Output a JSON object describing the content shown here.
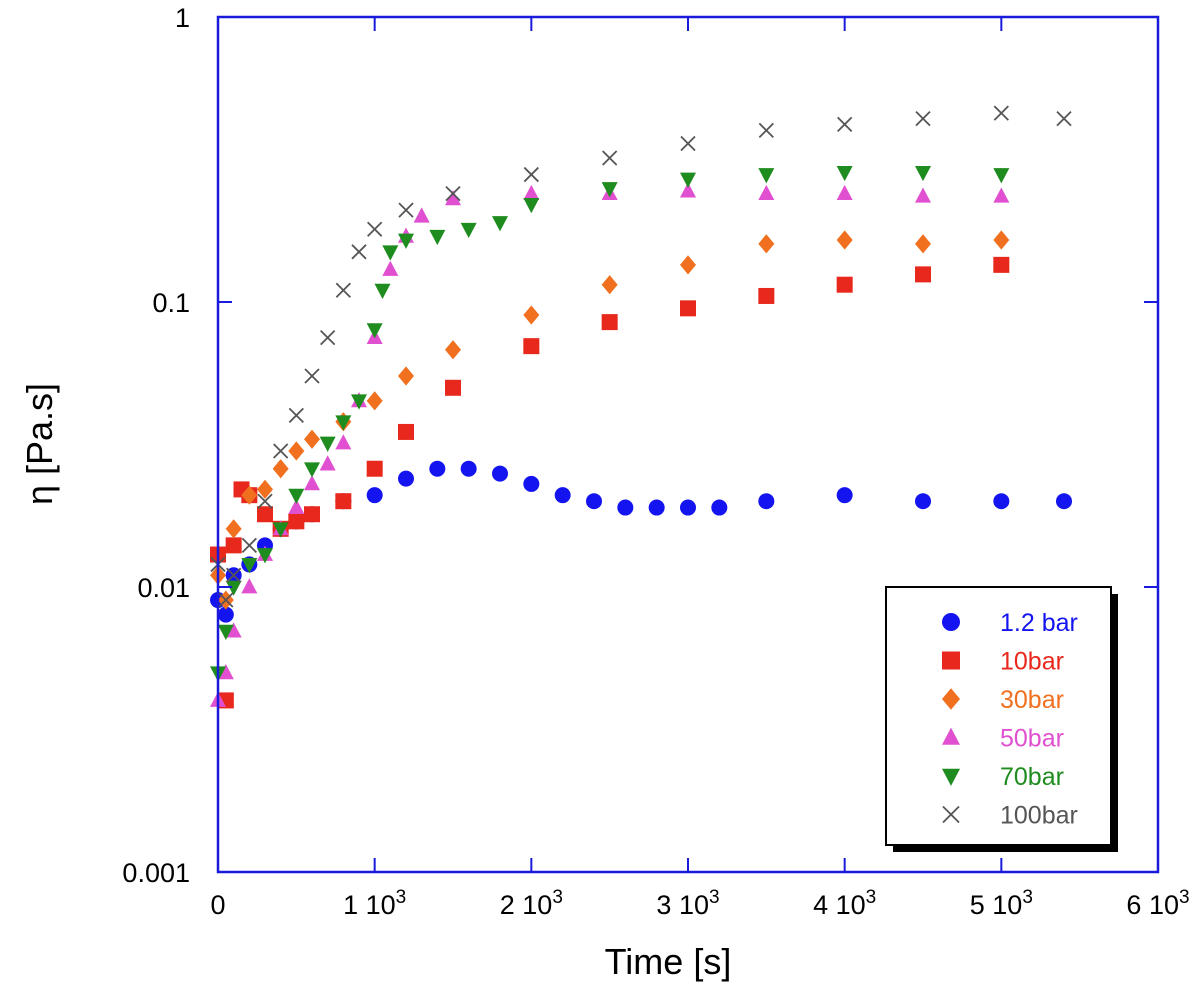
{
  "chart_data": {
    "type": "scatter",
    "title": "",
    "xlabel": "Time [s]",
    "ylabel": "η [Pa.s]",
    "xlim": [
      0,
      6000
    ],
    "ylim": [
      0.001,
      1
    ],
    "yscale": "log",
    "grid": false,
    "legend_position": "bottom-right",
    "x_tick_values": [
      0,
      1000,
      2000,
      3000,
      4000,
      5000,
      6000
    ],
    "x_tick_labels": [
      {
        "mantissa": "0",
        "exponent": ""
      },
      {
        "mantissa": "1 10",
        "exponent": "3"
      },
      {
        "mantissa": "2 10",
        "exponent": "3"
      },
      {
        "mantissa": "3 10",
        "exponent": "3"
      },
      {
        "mantissa": "4 10",
        "exponent": "3"
      },
      {
        "mantissa": "5 10",
        "exponent": "3"
      },
      {
        "mantissa": "6 10",
        "exponent": "3"
      }
    ],
    "y_tick_values": [
      0.001,
      0.01,
      0.1,
      1
    ],
    "y_tick_labels": [
      "0.001",
      "0.01",
      "0.1",
      "1"
    ],
    "series": [
      {
        "name": "1.2 bar",
        "marker": "circle",
        "color": "#1414f0",
        "x": [
          0,
          50,
          100,
          200,
          300,
          400,
          500,
          600,
          800,
          1000,
          1200,
          1400,
          1600,
          1800,
          2000,
          2200,
          2400,
          2600,
          2800,
          3000,
          3200,
          3500,
          4000,
          4500,
          5000,
          5400
        ],
        "y": [
          0.009,
          0.008,
          0.011,
          0.012,
          0.014,
          0.016,
          0.017,
          0.018,
          0.02,
          0.021,
          0.024,
          0.026,
          0.026,
          0.025,
          0.023,
          0.021,
          0.02,
          0.019,
          0.019,
          0.019,
          0.019,
          0.02,
          0.021,
          0.02,
          0.02,
          0.02
        ]
      },
      {
        "name": "10bar",
        "marker": "square",
        "color": "#e8281c",
        "x": [
          0,
          50,
          100,
          150,
          200,
          300,
          400,
          500,
          600,
          800,
          1000,
          1200,
          1500,
          2000,
          2500,
          3000,
          3500,
          4000,
          4500,
          5000
        ],
        "y": [
          0.013,
          0.004,
          0.014,
          0.022,
          0.021,
          0.018,
          0.016,
          0.017,
          0.018,
          0.02,
          0.026,
          0.035,
          0.05,
          0.07,
          0.085,
          0.095,
          0.105,
          0.115,
          0.125,
          0.135
        ]
      },
      {
        "name": "30bar",
        "marker": "diamond",
        "color": "#f07020",
        "x": [
          0,
          50,
          100,
          200,
          300,
          400,
          500,
          600,
          800,
          1000,
          1200,
          1500,
          2000,
          2500,
          3000,
          3500,
          4000,
          4500,
          5000
        ],
        "y": [
          0.011,
          0.009,
          0.016,
          0.021,
          0.022,
          0.026,
          0.03,
          0.033,
          0.038,
          0.045,
          0.055,
          0.068,
          0.09,
          0.115,
          0.135,
          0.16,
          0.165,
          0.16,
          0.165
        ]
      },
      {
        "name": "50bar",
        "marker": "triangle-up",
        "color": "#e050d0",
        "x": [
          0,
          50,
          100,
          200,
          300,
          400,
          500,
          600,
          700,
          800,
          900,
          1000,
          1100,
          1200,
          1300,
          1500,
          2000,
          2500,
          3000,
          3500,
          4000,
          4500,
          5000
        ],
        "y": [
          0.004,
          0.005,
          0.007,
          0.01,
          0.013,
          0.016,
          0.019,
          0.023,
          0.027,
          0.032,
          0.045,
          0.075,
          0.13,
          0.17,
          0.2,
          0.23,
          0.24,
          0.24,
          0.245,
          0.24,
          0.24,
          0.235,
          0.235
        ]
      },
      {
        "name": "70bar",
        "marker": "triangle-down",
        "color": "#1e8c1e",
        "x": [
          0,
          50,
          100,
          200,
          300,
          400,
          500,
          600,
          700,
          800,
          900,
          1000,
          1050,
          1100,
          1200,
          1400,
          1600,
          1800,
          2000,
          2500,
          3000,
          3500,
          4000,
          4500,
          5000
        ],
        "y": [
          0.005,
          0.007,
          0.01,
          0.012,
          0.013,
          0.016,
          0.021,
          0.026,
          0.032,
          0.038,
          0.045,
          0.08,
          0.11,
          0.15,
          0.165,
          0.17,
          0.18,
          0.19,
          0.22,
          0.25,
          0.27,
          0.28,
          0.285,
          0.285,
          0.28
        ]
      },
      {
        "name": "100bar",
        "marker": "x",
        "color": "#555555",
        "x": [
          0,
          50,
          100,
          200,
          300,
          400,
          500,
          600,
          700,
          800,
          900,
          1000,
          1200,
          1500,
          2000,
          2500,
          3000,
          3500,
          4000,
          4500,
          5000,
          5400
        ],
        "y": [
          0.012,
          0.009,
          0.011,
          0.014,
          0.02,
          0.03,
          0.04,
          0.055,
          0.075,
          0.11,
          0.15,
          0.18,
          0.21,
          0.24,
          0.28,
          0.32,
          0.36,
          0.4,
          0.42,
          0.44,
          0.46,
          0.44
        ]
      }
    ]
  }
}
